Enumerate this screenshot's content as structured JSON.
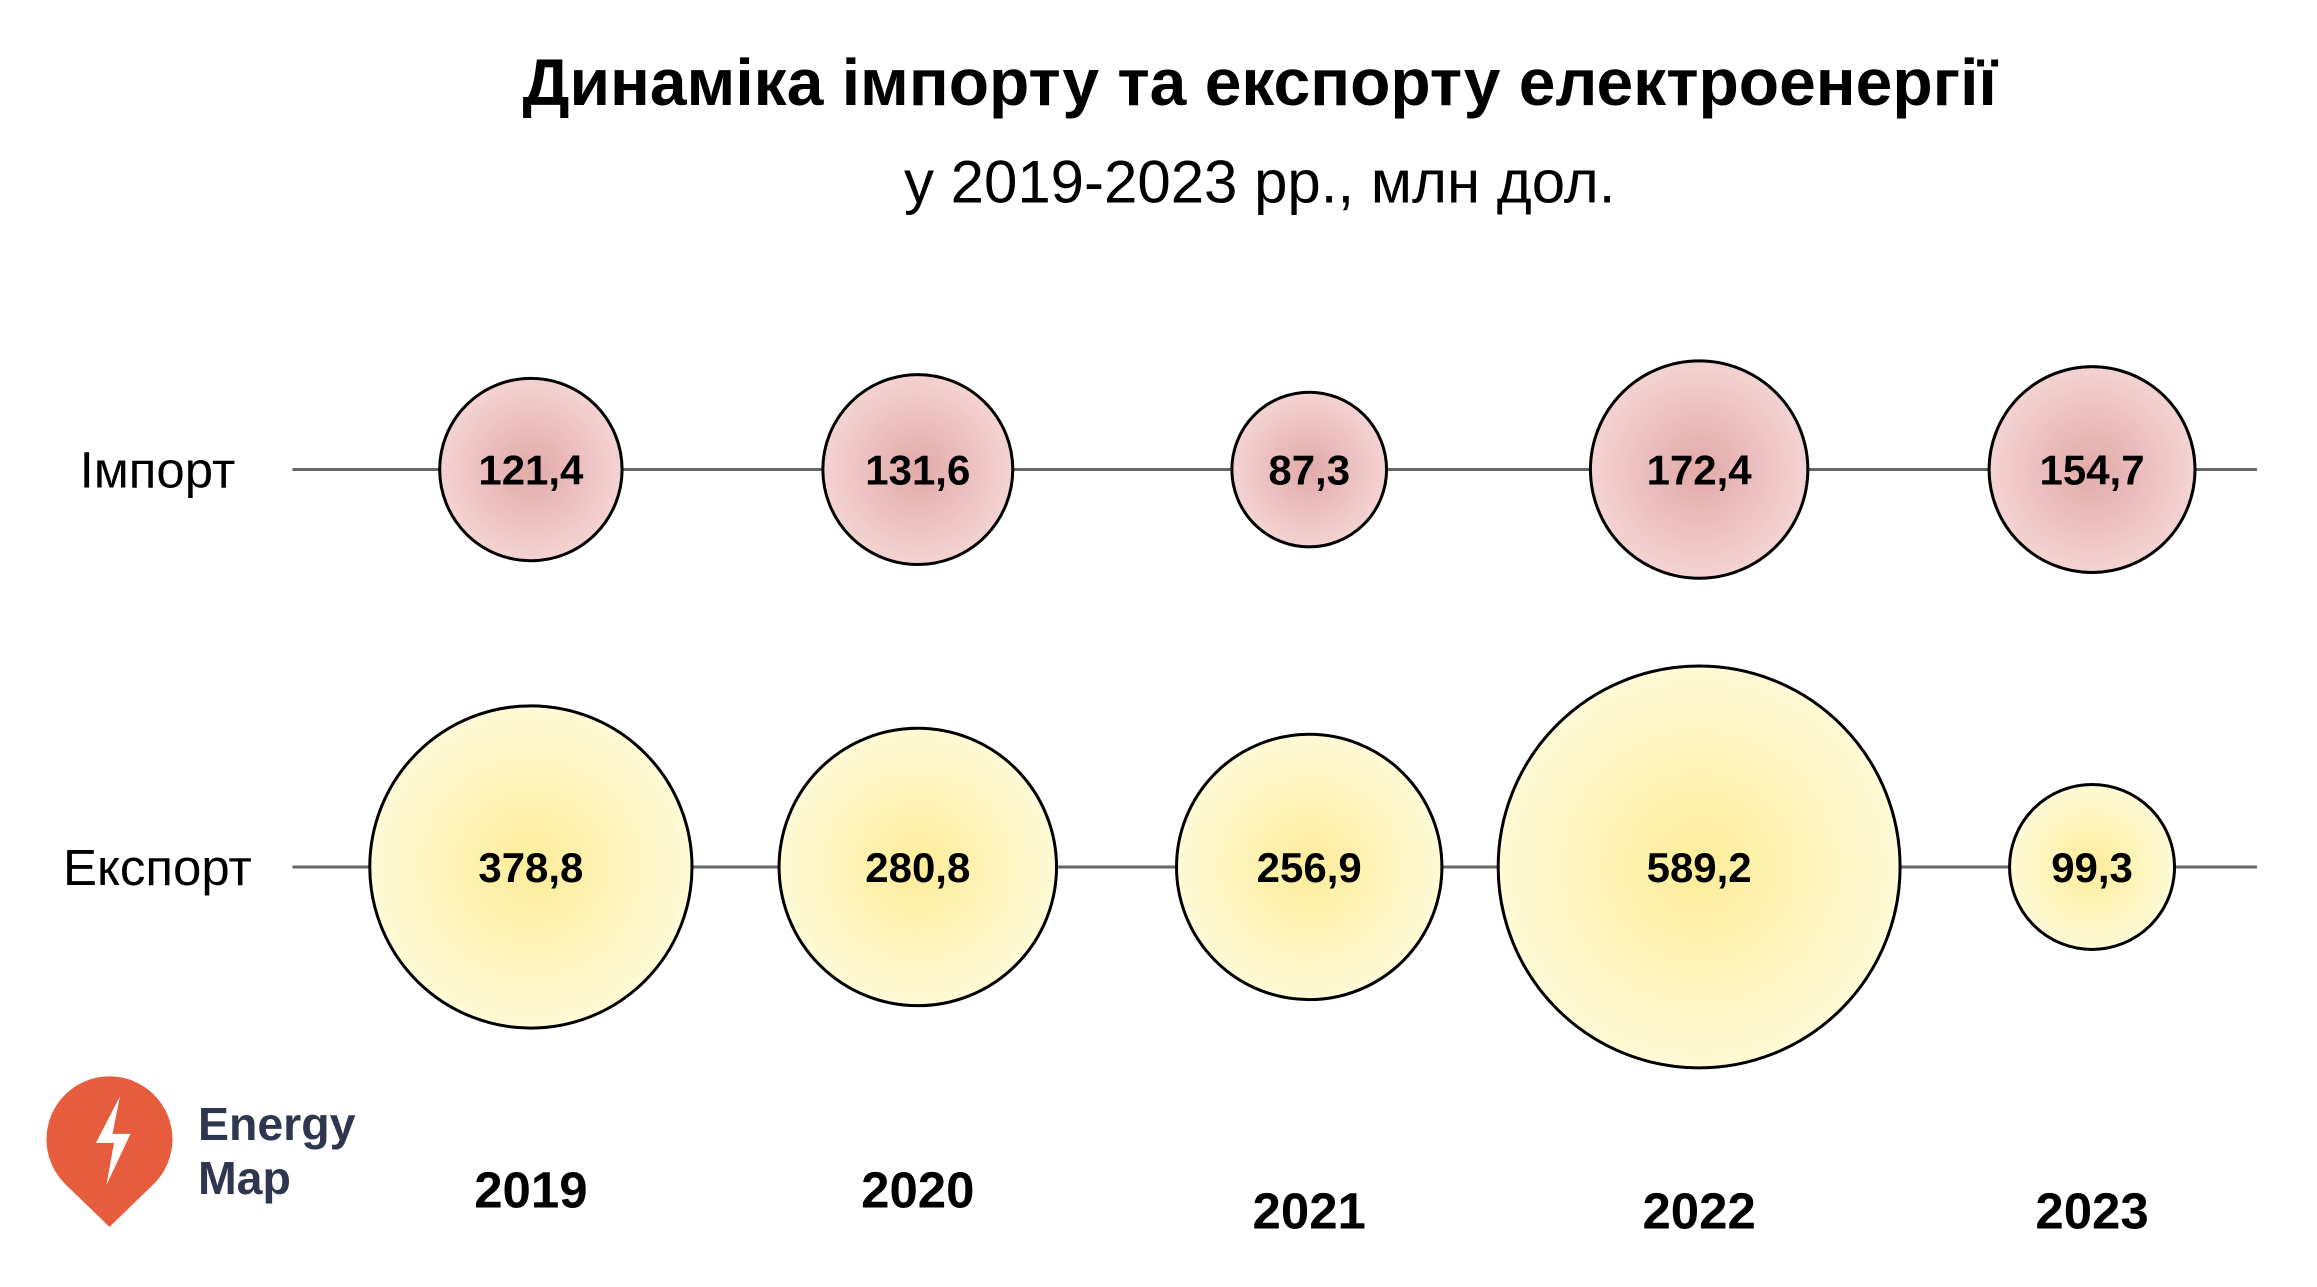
{
  "chart_data": {
    "type": "bubble",
    "title": "Динаміка імпорту та експорту електроенергії",
    "subtitle": "у 2019-2023 рр., млн дол.",
    "categories": [
      "2019",
      "2020",
      "2021",
      "2022",
      "2023"
    ],
    "series": [
      {
        "name": "Імпорт",
        "values": [
          121.4,
          131.6,
          87.3,
          172.4,
          154.7
        ],
        "labels": [
          "121,4",
          "131,6",
          "87,3",
          "172,4",
          "154,7"
        ],
        "color": "#e8b4b4"
      },
      {
        "name": "Експорт",
        "values": [
          378.8,
          280.8,
          256.9,
          589.2,
          99.3
        ],
        "labels": [
          "378,8",
          "280,8",
          "256,9",
          "589,2",
          "99,3"
        ],
        "color": "#fdf0a8"
      }
    ],
    "grid": false
  },
  "logo": {
    "text_line1": "Energy",
    "text_line2": "Map",
    "color": "#e65c3c",
    "text_color": "#2e3650"
  }
}
